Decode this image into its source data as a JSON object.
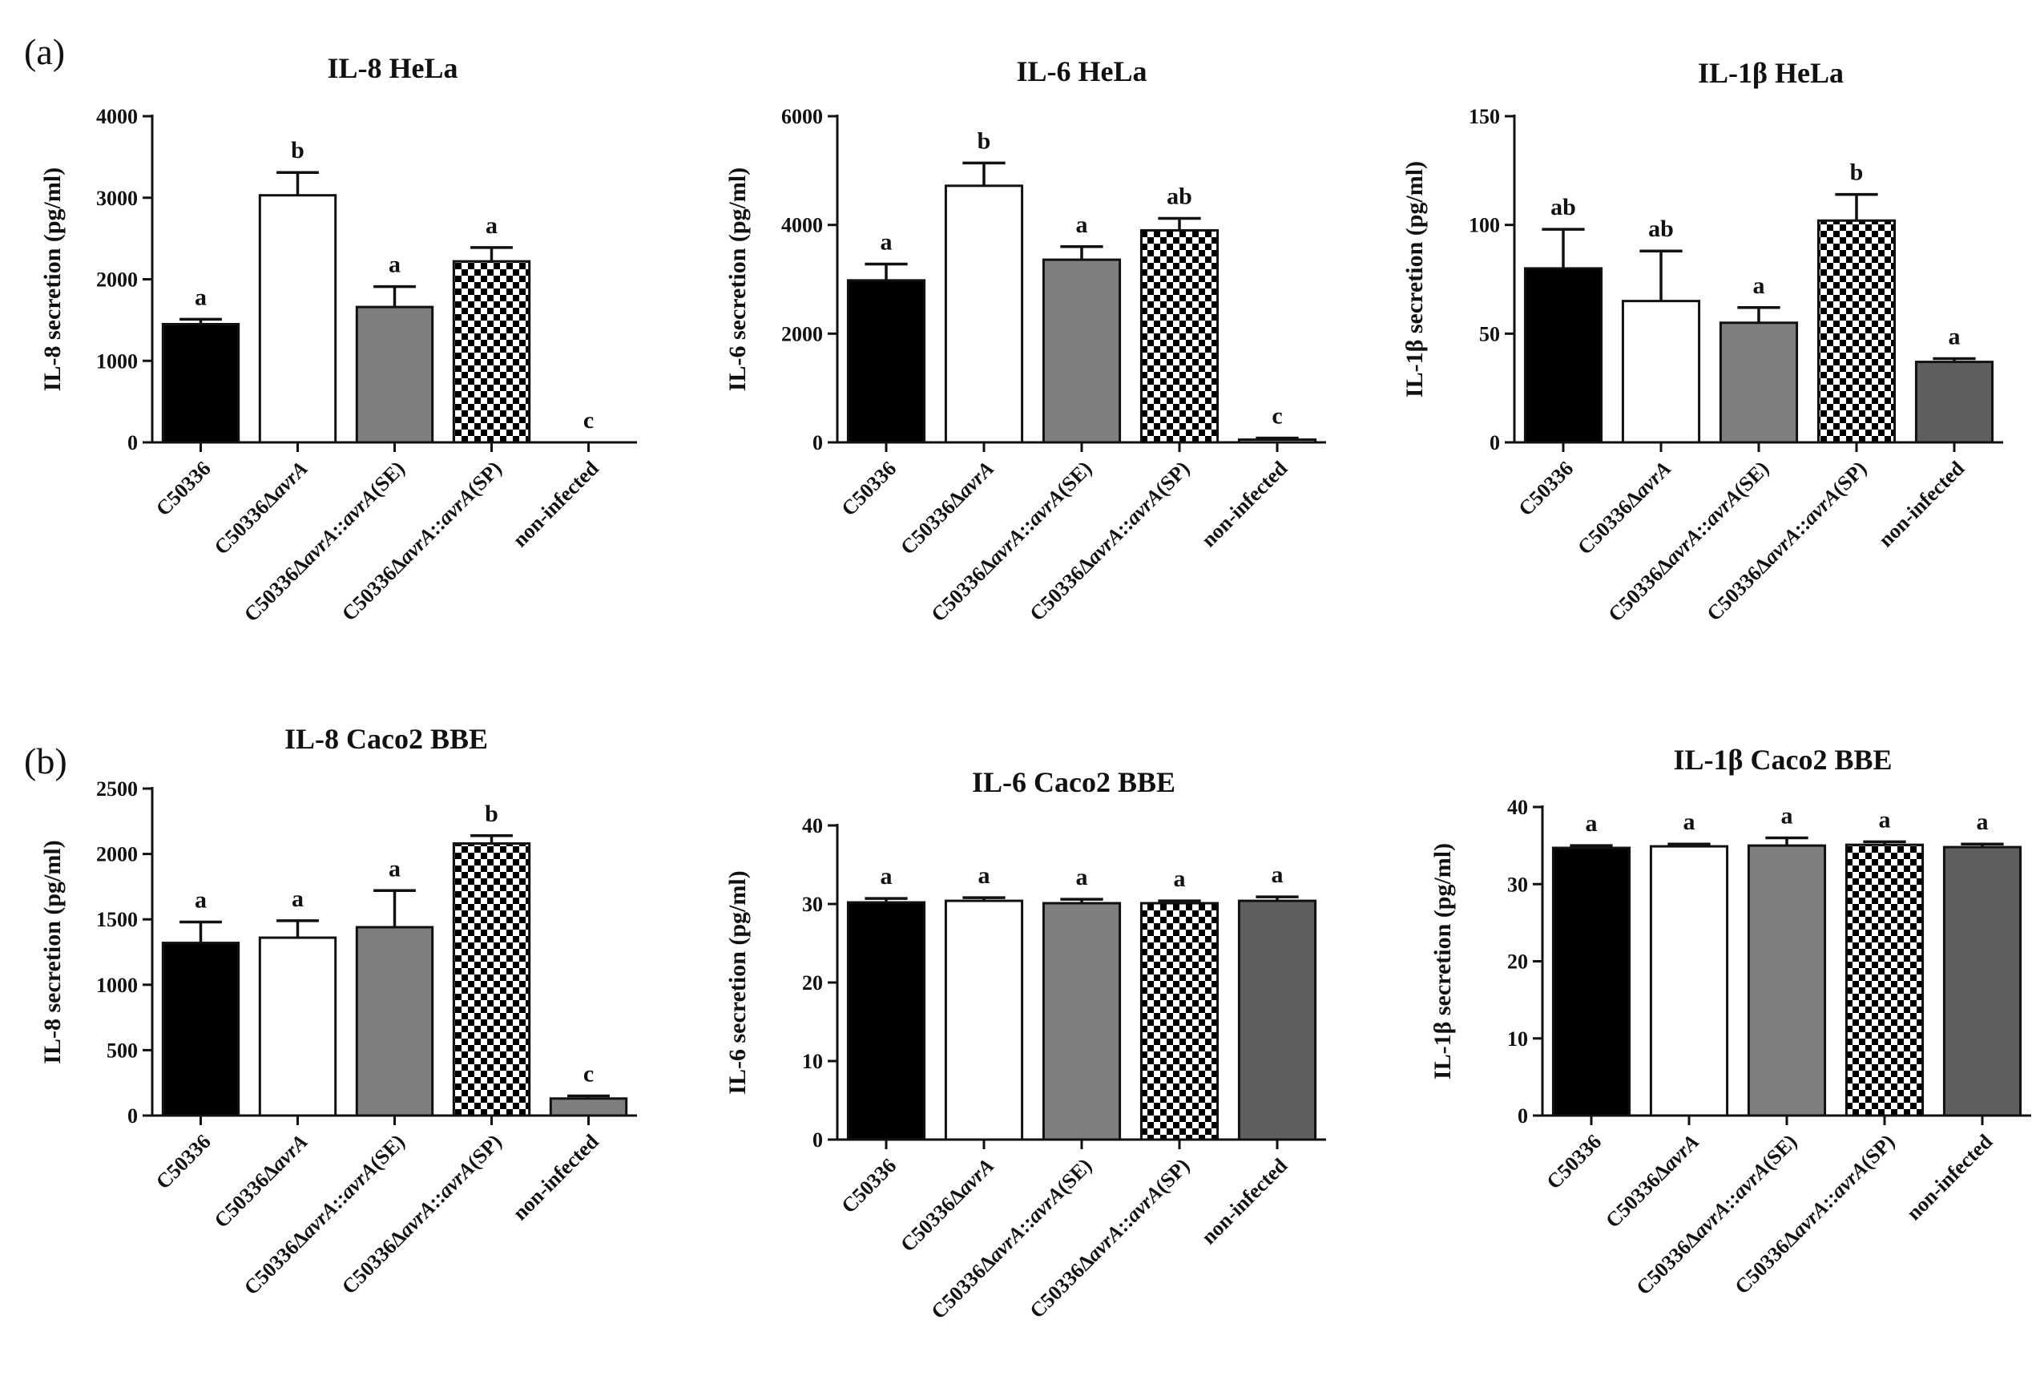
{
  "panel_labels": [
    "(a)",
    "(b)"
  ],
  "chart_data": [
    {
      "type": "bar",
      "title": "IL-8 HeLa",
      "ylabel": "IL-8 secretion (pg/ml)",
      "ylim": [
        0,
        4000
      ],
      "yticks": [
        0,
        1000,
        2000,
        3000,
        4000
      ],
      "categories": [
        "C50336",
        "C50336ΔavrA",
        "C50336ΔavrA::avrA(SE)",
        "C50336ΔavrA::avrA(SP)",
        "non-infected"
      ],
      "values": [
        1450,
        3030,
        1660,
        2220,
        0
      ],
      "errors": [
        60,
        280,
        250,
        170,
        0
      ],
      "significance": [
        "a",
        "b",
        "a",
        "a",
        "c"
      ],
      "fills": [
        "black",
        "white",
        "gray",
        "checker",
        "none"
      ]
    },
    {
      "type": "bar",
      "title": "IL-6 HeLa",
      "ylabel": "IL-6 secretion (pg/ml)",
      "ylim": [
        0,
        6000
      ],
      "yticks": [
        0,
        2000,
        4000,
        6000
      ],
      "categories": [
        "C50336",
        "C50336ΔavrA",
        "C50336ΔavrA::avrA(SE)",
        "C50336ΔavrA::avrA(SP)",
        "non-infected"
      ],
      "values": [
        2980,
        4720,
        3360,
        3900,
        50
      ],
      "errors": [
        300,
        420,
        240,
        220,
        30
      ],
      "significance": [
        "a",
        "b",
        "a",
        "ab",
        "c"
      ],
      "fills": [
        "black",
        "white",
        "gray",
        "checker",
        "none"
      ]
    },
    {
      "type": "bar",
      "title": "IL-1β HeLa",
      "ylabel": "IL-1β secretion (pg/ml)",
      "ylim": [
        0,
        150
      ],
      "yticks": [
        0,
        50,
        100,
        150
      ],
      "categories": [
        "C50336",
        "C50336ΔavrA",
        "C50336ΔavrA::avrA(SE)",
        "C50336ΔavrA::avrA(SP)",
        "non-infected"
      ],
      "values": [
        80,
        65,
        55,
        102,
        37
      ],
      "errors": [
        18,
        23,
        7,
        12,
        1.5
      ],
      "significance": [
        "ab",
        "ab",
        "a",
        "b",
        "a"
      ],
      "fills": [
        "black",
        "white",
        "gray",
        "checker",
        "dark"
      ]
    },
    {
      "type": "bar",
      "title": "IL-8 Caco2 BBE",
      "ylabel": "IL-8 secretion (pg/ml)",
      "ylim": [
        0,
        2500
      ],
      "yticks": [
        0,
        500,
        1000,
        1500,
        2000,
        2500
      ],
      "categories": [
        "C50336",
        "C50336ΔavrA",
        "C50336ΔavrA::avrA(SE)",
        "C50336ΔavrA::avrA(SP)",
        "non-infected"
      ],
      "values": [
        1320,
        1360,
        1440,
        2080,
        130
      ],
      "errors": [
        160,
        130,
        280,
        60,
        20
      ],
      "significance": [
        "a",
        "a",
        "a",
        "b",
        "c"
      ],
      "fills": [
        "black",
        "white",
        "gray",
        "checker",
        "gray"
      ]
    },
    {
      "type": "bar",
      "title": "IL-6 Caco2 BBE",
      "ylabel": "IL-6 secretion (pg/ml)",
      "ylim": [
        0,
        40
      ],
      "yticks": [
        0,
        10,
        20,
        30,
        40
      ],
      "categories": [
        "C50336",
        "C50336ΔavrA",
        "C50336ΔavrA::avrA(SE)",
        "C50336ΔavrA::avrA(SP)",
        "non-infected"
      ],
      "values": [
        30.2,
        30.4,
        30.1,
        30.1,
        30.4
      ],
      "errors": [
        0.5,
        0.4,
        0.5,
        0.3,
        0.5
      ],
      "significance": [
        "a",
        "a",
        "a",
        "a",
        "a"
      ],
      "fills": [
        "black",
        "white",
        "gray",
        "checker",
        "dark"
      ]
    },
    {
      "type": "bar",
      "title": "IL-1β Caco2 BBE",
      "ylabel": "IL-1β secretion (pg/ml)",
      "ylim": [
        0,
        40
      ],
      "yticks": [
        0,
        10,
        20,
        30,
        40
      ],
      "categories": [
        "C50336",
        "C50336ΔavrA",
        "C50336ΔavrA::avrA(SE)",
        "C50336ΔavrA::avrA(SP)",
        "non-infected"
      ],
      "values": [
        34.7,
        34.9,
        35.0,
        35.1,
        34.8
      ],
      "errors": [
        0.3,
        0.3,
        1.0,
        0.4,
        0.4
      ],
      "significance": [
        "a",
        "a",
        "a",
        "a",
        "a"
      ],
      "fills": [
        "black",
        "white",
        "gray",
        "checker",
        "dark"
      ]
    }
  ],
  "colors": {
    "black": "#000000",
    "white": "#ffffff",
    "gray": "#7f7f7f",
    "dark": "#5e5e5e",
    "axis": "#111111"
  }
}
